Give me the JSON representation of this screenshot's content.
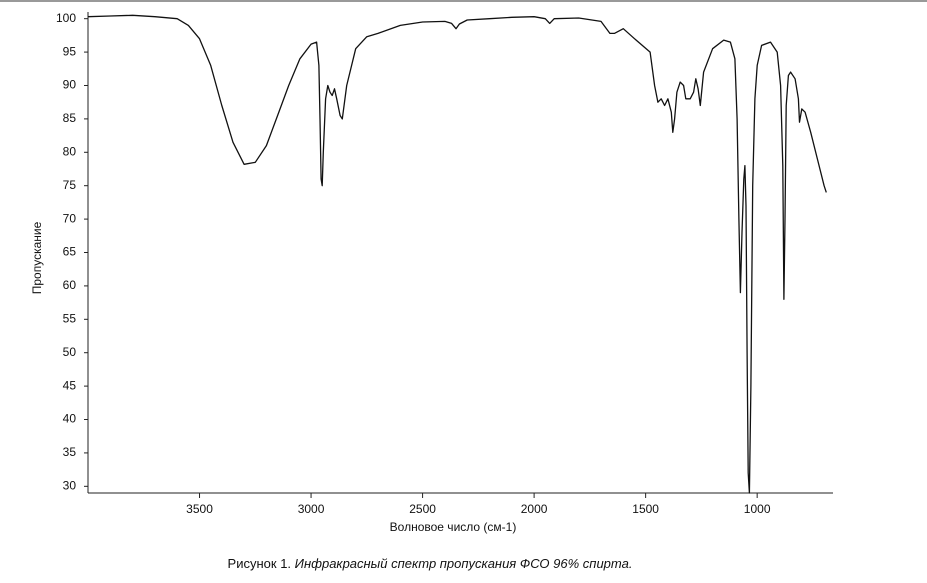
{
  "chart_data": {
    "type": "line",
    "ylabel": "Пропускание",
    "xlabel": "Волновое число (см-1)",
    "caption_label": "Рисунок 1.",
    "caption_text": "Инфракрасный спектр пропускания ФСО 96% спирта.",
    "xlim": [
      4000,
      660
    ],
    "ylim": [
      29,
      101
    ],
    "xticks": [
      3500,
      3000,
      2500,
      2000,
      1500,
      1000
    ],
    "yticks": [
      100,
      95,
      90,
      85,
      80,
      75,
      70,
      65,
      60,
      55,
      50,
      45,
      40,
      35,
      30
    ],
    "series": [
      {
        "color": "#111111",
        "x": [
          4000,
          3900,
          3800,
          3700,
          3600,
          3550,
          3500,
          3450,
          3400,
          3350,
          3300,
          3250,
          3200,
          3150,
          3100,
          3050,
          3000,
          2975,
          2965,
          2960,
          2955,
          2950,
          2945,
          2935,
          2925,
          2915,
          2905,
          2895,
          2885,
          2870,
          2860,
          2840,
          2800,
          2750,
          2700,
          2600,
          2500,
          2400,
          2370,
          2350,
          2335,
          2300,
          2200,
          2100,
          2000,
          1950,
          1930,
          1910,
          1800,
          1700,
          1660,
          1640,
          1600,
          1550,
          1480,
          1460,
          1445,
          1430,
          1415,
          1400,
          1385,
          1378,
          1370,
          1360,
          1345,
          1330,
          1320,
          1300,
          1285,
          1275,
          1265,
          1255,
          1240,
          1200,
          1150,
          1120,
          1100,
          1090,
          1082,
          1075,
          1068,
          1060,
          1055,
          1050,
          1045,
          1040,
          1035,
          1028,
          1020,
          1010,
          1000,
          980,
          940,
          910,
          895,
          885,
          880,
          875,
          870,
          860,
          850,
          830,
          815,
          810,
          800,
          785,
          760,
          730,
          700,
          690
        ],
        "values": [
          100.3,
          100.4,
          100.5,
          100.3,
          100,
          99,
          97,
          93,
          87,
          81.5,
          78.2,
          78.5,
          81,
          85.5,
          90,
          94,
          96.2,
          96.5,
          93,
          85,
          76,
          75,
          80,
          88,
          90,
          89,
          88.5,
          89.5,
          88,
          85.5,
          85,
          90,
          95.5,
          97.3,
          97.8,
          99,
          99.5,
          99.6,
          99.3,
          98.5,
          99.2,
          99.8,
          100,
          100.2,
          100.3,
          100,
          99.3,
          100,
          100.1,
          99.6,
          97.8,
          97.8,
          98.5,
          97,
          95,
          90,
          87.5,
          88,
          87,
          88,
          86,
          83,
          85,
          89,
          90.5,
          90,
          88,
          88,
          89,
          91,
          89.5,
          87,
          92,
          95.5,
          96.8,
          96.5,
          94,
          85,
          70,
          59,
          68,
          76,
          78,
          72,
          50,
          32,
          29,
          45,
          75,
          88,
          93,
          96,
          96.5,
          95,
          90,
          78,
          58,
          70,
          87,
          91.5,
          92,
          91,
          88,
          84.5,
          86.5,
          86,
          83,
          79,
          75,
          74
        ]
      }
    ]
  }
}
